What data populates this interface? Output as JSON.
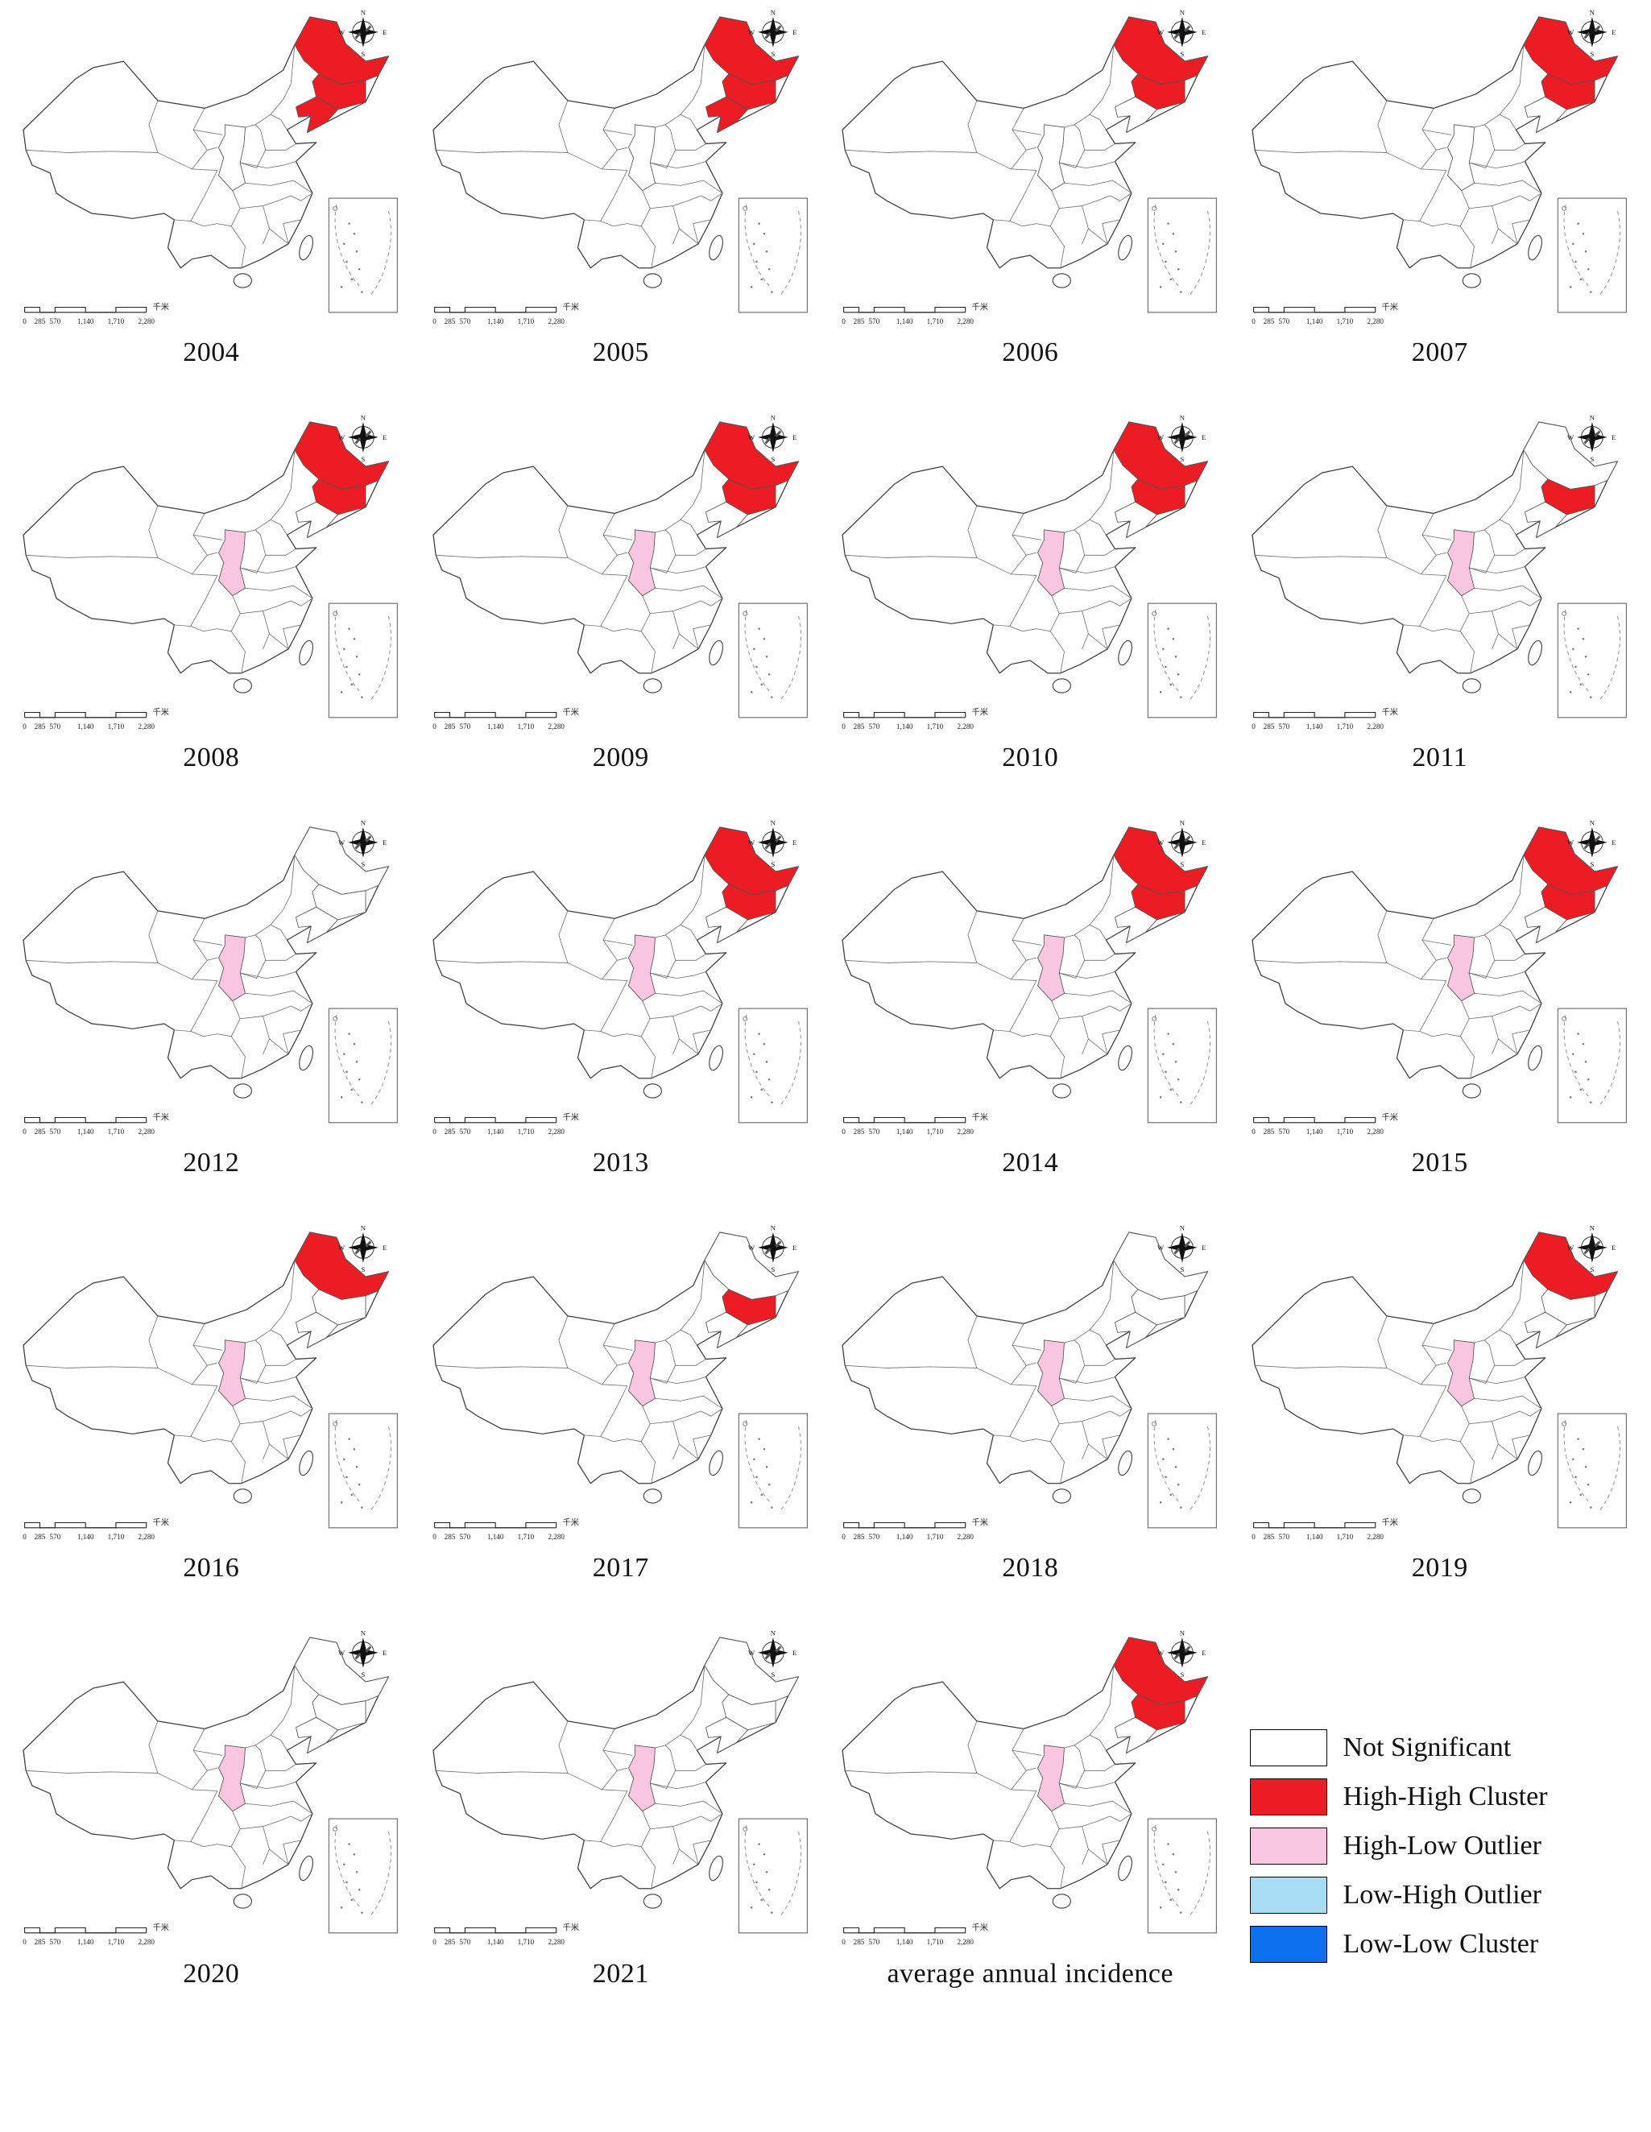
{
  "colors": {
    "not_significant": "#ffffff",
    "high_high": "#ec1c24",
    "high_low": "#f9c6e1",
    "low_high": "#a8dcf4",
    "low_low": "#0c70ee",
    "outline": "#3c3c3c",
    "province_border": "#6b6b6b"
  },
  "map_chrome": {
    "compass": {
      "n": "N",
      "e": "E",
      "s": "S",
      "w": "W"
    },
    "scalebar": {
      "labels": [
        "0",
        "285",
        "570",
        "1,140",
        "1,710",
        "2,280"
      ],
      "unit": "千米"
    }
  },
  "legend": {
    "items": [
      {
        "label": "Not Significant",
        "color_key": "not_significant"
      },
      {
        "label": "High-High Cluster",
        "color_key": "high_high"
      },
      {
        "label": "High-Low Outlier",
        "color_key": "high_low"
      },
      {
        "label": "Low-High Outlier",
        "color_key": "low_high"
      },
      {
        "label": "Low-Low Cluster",
        "color_key": "low_low"
      }
    ]
  },
  "chart_data": {
    "type": "choropleth-small-multiples",
    "classes": [
      "Not Significant",
      "High-High Cluster",
      "High-Low Outlier",
      "Low-High Outlier",
      "Low-Low Cluster"
    ],
    "panels": [
      {
        "label": "2004",
        "high_high": [
          "heilongjiang",
          "jilin",
          "liaoning"
        ],
        "high_low": []
      },
      {
        "label": "2005",
        "high_high": [
          "heilongjiang",
          "jilin",
          "liaoning"
        ],
        "high_low": []
      },
      {
        "label": "2006",
        "high_high": [
          "heilongjiang",
          "jilin"
        ],
        "high_low": []
      },
      {
        "label": "2007",
        "high_high": [
          "heilongjiang",
          "jilin"
        ],
        "high_low": []
      },
      {
        "label": "2008",
        "high_high": [
          "heilongjiang",
          "jilin"
        ],
        "high_low": [
          "shaanxi"
        ]
      },
      {
        "label": "2009",
        "high_high": [
          "heilongjiang",
          "jilin"
        ],
        "high_low": [
          "shaanxi"
        ]
      },
      {
        "label": "2010",
        "high_high": [
          "heilongjiang",
          "jilin"
        ],
        "high_low": [
          "shaanxi"
        ]
      },
      {
        "label": "2011",
        "high_high": [
          "jilin"
        ],
        "high_low": [
          "shaanxi"
        ]
      },
      {
        "label": "2012",
        "high_high": [],
        "high_low": [
          "shaanxi"
        ]
      },
      {
        "label": "2013",
        "high_high": [
          "heilongjiang",
          "jilin"
        ],
        "high_low": [
          "shaanxi"
        ]
      },
      {
        "label": "2014",
        "high_high": [
          "heilongjiang",
          "jilin"
        ],
        "high_low": [
          "shaanxi"
        ]
      },
      {
        "label": "2015",
        "high_high": [
          "heilongjiang",
          "jilin"
        ],
        "high_low": [
          "shaanxi"
        ]
      },
      {
        "label": "2016",
        "high_high": [
          "heilongjiang"
        ],
        "high_low": [
          "shaanxi"
        ]
      },
      {
        "label": "2017",
        "high_high": [
          "jilin"
        ],
        "high_low": [
          "shaanxi"
        ]
      },
      {
        "label": "2018",
        "high_high": [],
        "high_low": [
          "shaanxi"
        ]
      },
      {
        "label": "2019",
        "high_high": [
          "heilongjiang"
        ],
        "high_low": [
          "shaanxi"
        ]
      },
      {
        "label": "2020",
        "high_high": [],
        "high_low": [
          "shaanxi"
        ]
      },
      {
        "label": "2021",
        "high_high": [],
        "high_low": [
          "shaanxi"
        ]
      },
      {
        "label": "average annual incidence",
        "high_high": [
          "heilongjiang",
          "jilin"
        ],
        "high_low": [
          "shaanxi"
        ]
      }
    ]
  }
}
